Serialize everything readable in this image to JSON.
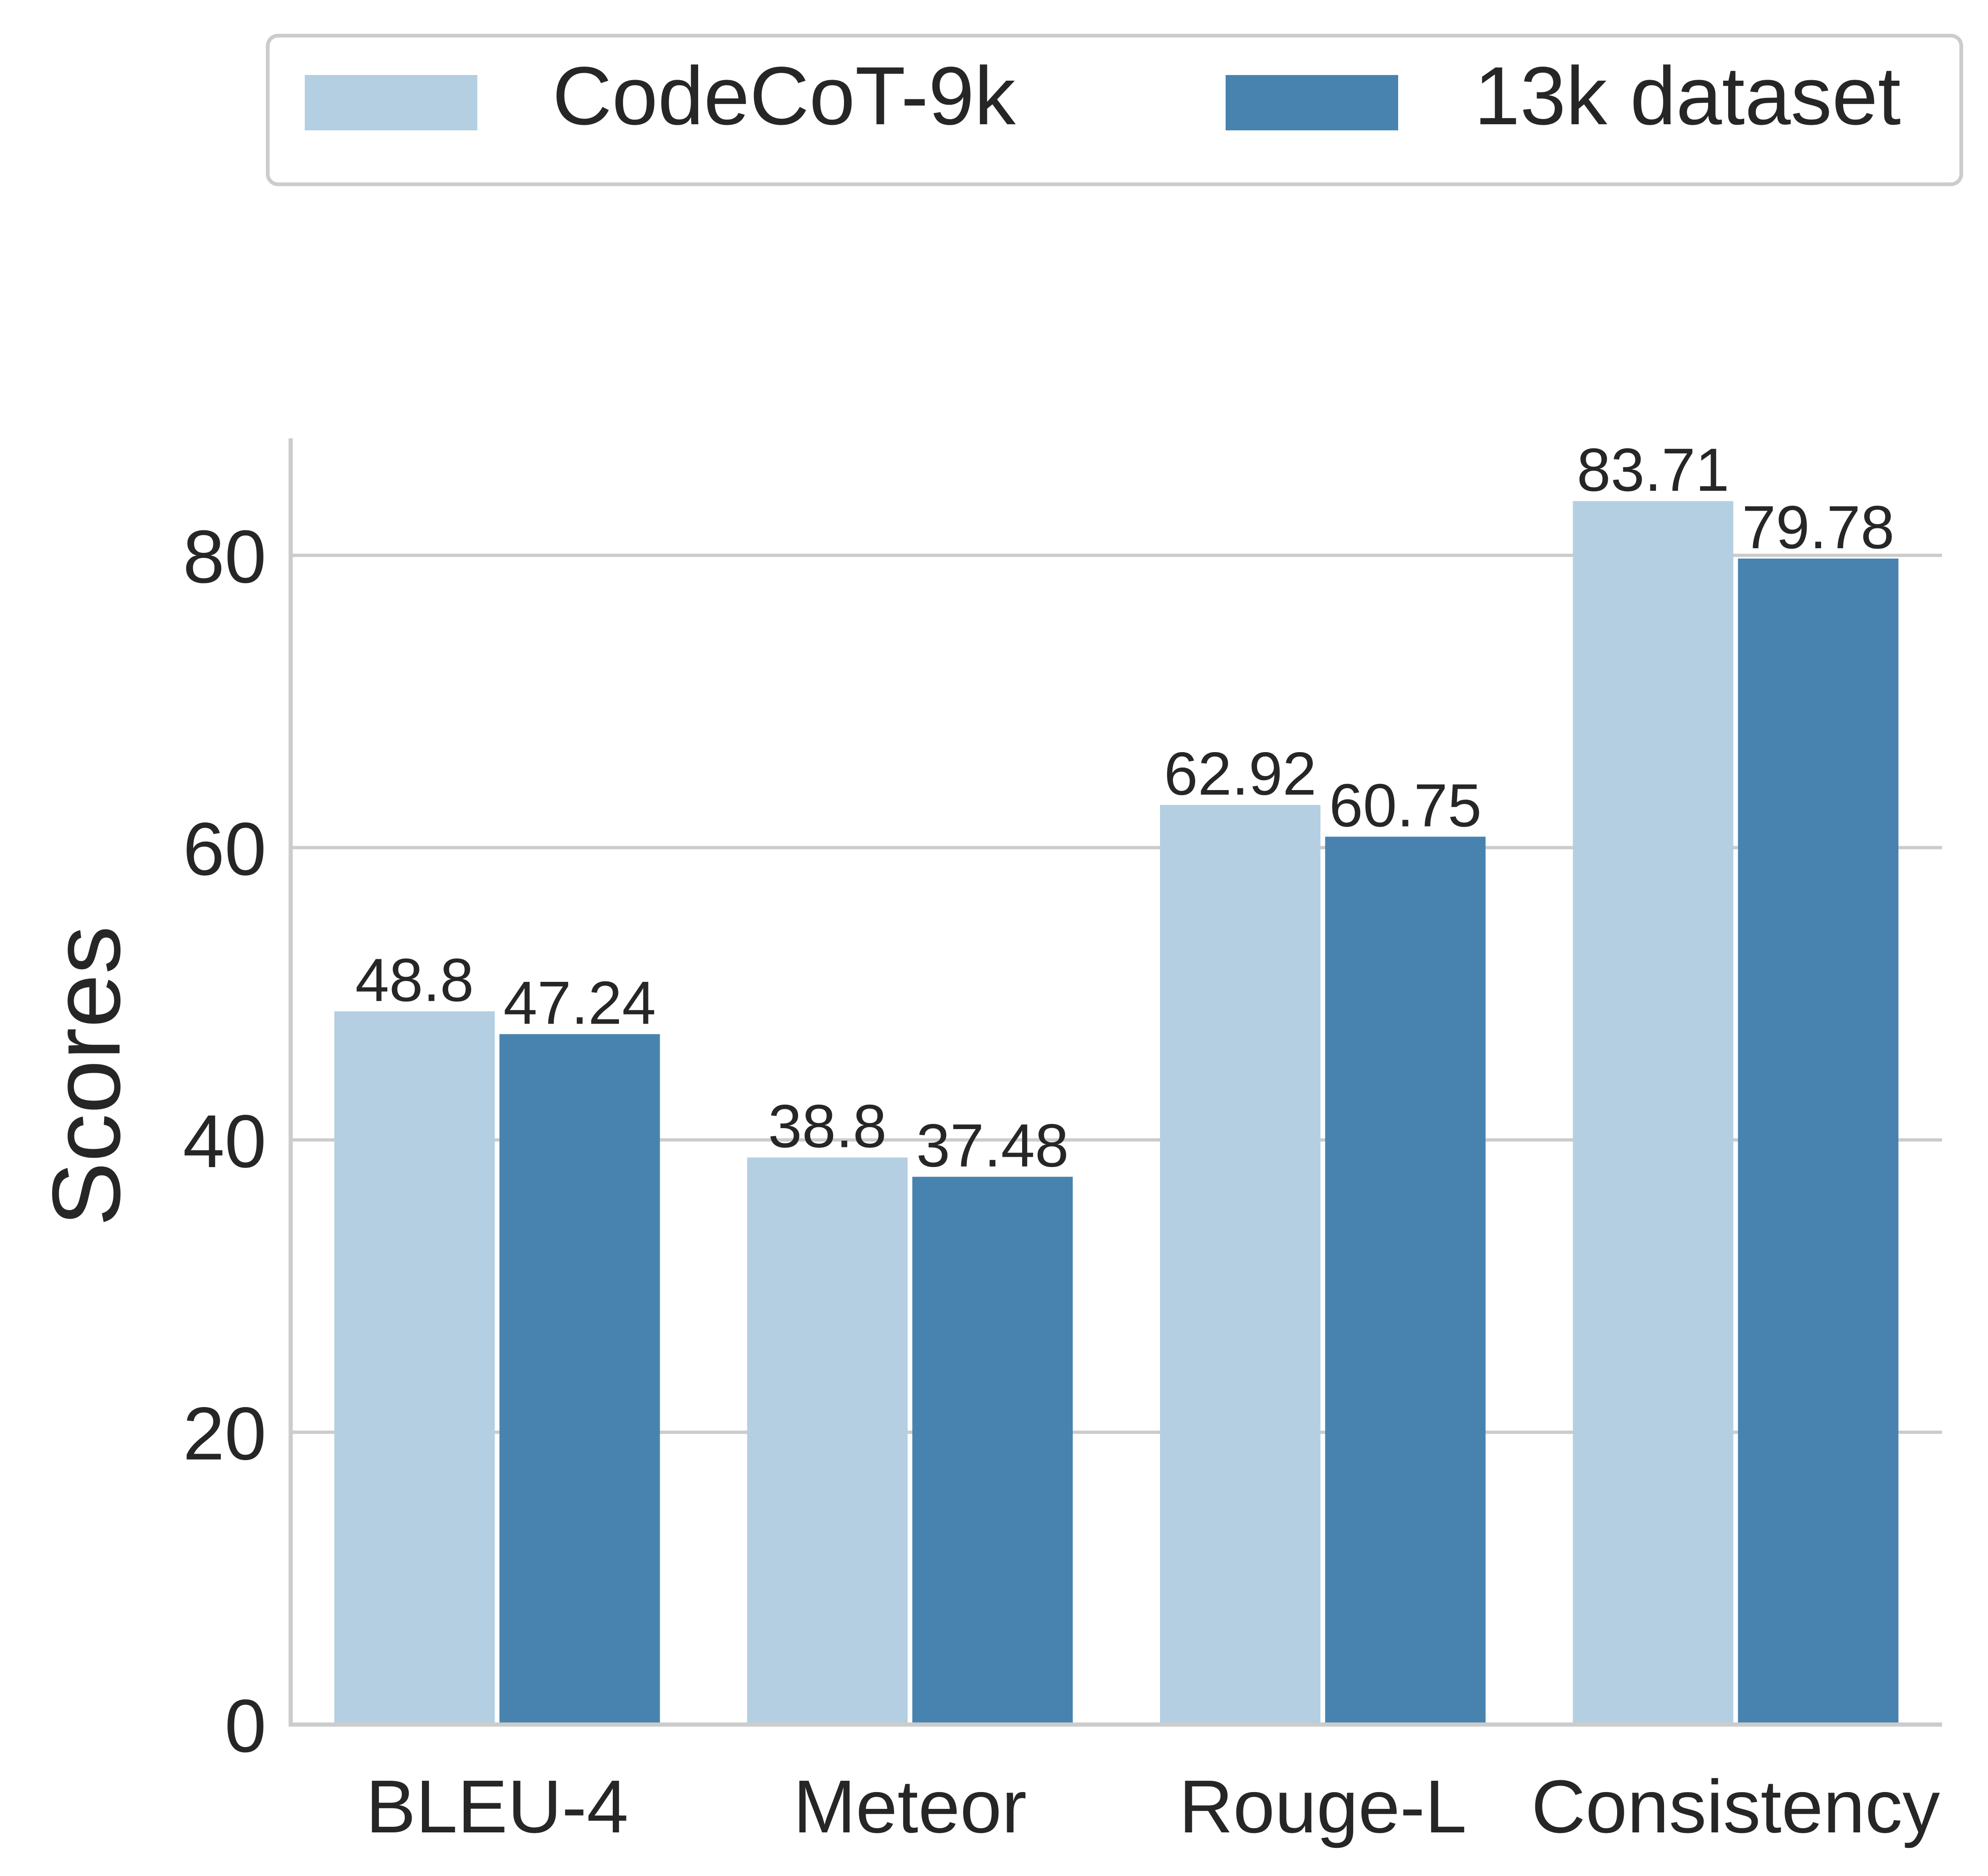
{
  "chart_data": {
    "type": "bar",
    "title": "",
    "xlabel": "",
    "ylabel": "Scores",
    "categories": [
      "BLEU-4",
      "Meteor",
      "Rouge-L",
      "Consistency"
    ],
    "series": [
      {
        "name": "CodeCoT-9k",
        "values": [
          48.8,
          38.8,
          62.92,
          83.71
        ],
        "labels": [
          "48.8",
          "38.8",
          "62.92",
          "83.71"
        ],
        "color": "#b4cfe1"
      },
      {
        "name": "13k dataset",
        "values": [
          47.24,
          37.48,
          60.75,
          79.78
        ],
        "labels": [
          "47.24",
          "37.48",
          "60.75",
          "79.78"
        ],
        "color": "#4883b0"
      }
    ],
    "ylim": [
      0,
      88
    ],
    "yticks": [
      0,
      20,
      40,
      60,
      80
    ],
    "ytick_labels": [
      "0",
      "20",
      "40",
      "60",
      "80"
    ],
    "grid": true,
    "legend_position": "top",
    "colors": {
      "grid": "#cccccc",
      "axis": "#cccccc",
      "text": "#262626"
    }
  }
}
